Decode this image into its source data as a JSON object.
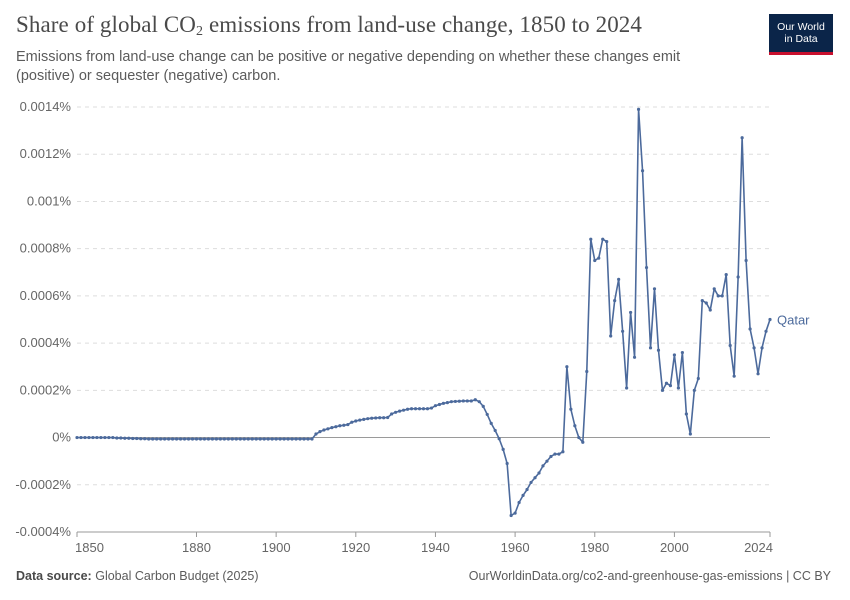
{
  "header": {
    "title_prefix": "Share of global CO",
    "title_sub": "2",
    "title_suffix": " emissions from land-use change, 1850 to 2024",
    "subtitle": "Emissions from land-use change can be positive or negative depending on whether these changes emit (positive) or sequester (negative) carbon."
  },
  "logo": {
    "line1": "Our World",
    "line2": "in Data",
    "bg": "#0b2549",
    "accent": "#c8102e"
  },
  "footer": {
    "source_label": "Data source:",
    "source_value": "Global Carbon Budget (2025)",
    "right_text": "OurWorldinData.org/co2-and-greenhouse-gas-emissions | CC BY"
  },
  "chart_data": {
    "type": "line",
    "title": "Share of global CO₂ emissions from land-use change, 1850 to 2024",
    "xlim": [
      1850,
      2024
    ],
    "ylim": [
      -0.0004,
      0.0014
    ],
    "x_ticks": [
      1850,
      1880,
      1900,
      1920,
      1940,
      1960,
      1980,
      2000,
      2024
    ],
    "y_ticks": [
      {
        "value": -0.0004,
        "label": "-0.0004%"
      },
      {
        "value": -0.0002,
        "label": "-0.0002%"
      },
      {
        "value": 0,
        "label": "0%"
      },
      {
        "value": 0.0002,
        "label": "0.0002%"
      },
      {
        "value": 0.0004,
        "label": "0.0004%"
      },
      {
        "value": 0.0006,
        "label": "0.0006%"
      },
      {
        "value": 0.0008,
        "label": "0.0008%"
      },
      {
        "value": 0.001,
        "label": "0.001%"
      },
      {
        "value": 0.0012,
        "label": "0.0012%"
      },
      {
        "value": 0.0014,
        "label": "0.0014%"
      }
    ],
    "grid": true,
    "color": "#4c6a9c",
    "series": [
      {
        "name": "Qatar",
        "x": [
          1850,
          1851,
          1852,
          1853,
          1854,
          1855,
          1856,
          1857,
          1858,
          1859,
          1860,
          1861,
          1862,
          1863,
          1864,
          1865,
          1866,
          1867,
          1868,
          1869,
          1870,
          1871,
          1872,
          1873,
          1874,
          1875,
          1876,
          1877,
          1878,
          1879,
          1880,
          1881,
          1882,
          1883,
          1884,
          1885,
          1886,
          1887,
          1888,
          1889,
          1890,
          1891,
          1892,
          1893,
          1894,
          1895,
          1896,
          1897,
          1898,
          1899,
          1900,
          1901,
          1902,
          1903,
          1904,
          1905,
          1906,
          1907,
          1908,
          1909,
          1910,
          1911,
          1912,
          1913,
          1914,
          1915,
          1916,
          1917,
          1918,
          1919,
          1920,
          1921,
          1922,
          1923,
          1924,
          1925,
          1926,
          1927,
          1928,
          1929,
          1930,
          1931,
          1932,
          1933,
          1934,
          1935,
          1936,
          1937,
          1938,
          1939,
          1940,
          1941,
          1942,
          1943,
          1944,
          1945,
          1946,
          1947,
          1948,
          1949,
          1950,
          1951,
          1952,
          1953,
          1954,
          1955,
          1956,
          1957,
          1958,
          1959,
          1960,
          1961,
          1962,
          1963,
          1964,
          1965,
          1966,
          1967,
          1968,
          1969,
          1970,
          1971,
          1972,
          1973,
          1974,
          1975,
          1976,
          1977,
          1978,
          1979,
          1980,
          1981,
          1982,
          1983,
          1984,
          1985,
          1986,
          1987,
          1988,
          1989,
          1990,
          1991,
          1992,
          1993,
          1994,
          1995,
          1996,
          1997,
          1998,
          1999,
          2000,
          2001,
          2002,
          2003,
          2004,
          2005,
          2006,
          2007,
          2008,
          2009,
          2010,
          2011,
          2012,
          2013,
          2014,
          2015,
          2016,
          2017,
          2018,
          2019,
          2020,
          2021,
          2022,
          2023,
          2024
        ],
        "y": [
          0,
          0,
          0,
          0,
          0,
          0,
          0,
          0,
          0,
          0,
          -2e-06,
          -2e-06,
          -3e-06,
          -3e-06,
          -4e-06,
          -4e-06,
          -5e-06,
          -5e-06,
          -6e-06,
          -6e-06,
          -6e-06,
          -6e-06,
          -6e-06,
          -6e-06,
          -6e-06,
          -6e-06,
          -6e-06,
          -6e-06,
          -6e-06,
          -6e-06,
          -6e-06,
          -6e-06,
          -6e-06,
          -6e-06,
          -6e-06,
          -6e-06,
          -6e-06,
          -6e-06,
          -6e-06,
          -6e-06,
          -6e-06,
          -6e-06,
          -6e-06,
          -6e-06,
          -6e-06,
          -6e-06,
          -6e-06,
          -6e-06,
          -6e-06,
          -6e-06,
          -6e-06,
          -6e-06,
          -6e-06,
          -6e-06,
          -6e-06,
          -6e-06,
          -6e-06,
          -6e-06,
          -6e-06,
          -6e-06,
          1.5e-05,
          2.5e-05,
          3.2e-05,
          3.7e-05,
          4.2e-05,
          4.6e-05,
          5e-05,
          5.2e-05,
          5.5e-05,
          6.5e-05,
          7e-05,
          7.4e-05,
          7.7e-05,
          8e-05,
          8.2e-05,
          8.3e-05,
          8.4e-05,
          8.4e-05,
          8.5e-05,
          0.0001,
          0.000107,
          0.000112,
          0.000116,
          0.00012,
          0.000122,
          0.000122,
          0.000122,
          0.000122,
          0.000122,
          0.000125,
          0.000135,
          0.00014,
          0.000145,
          0.000148,
          0.000152,
          0.000153,
          0.000154,
          0.000155,
          0.000155,
          0.000155,
          0.00016,
          0.000152,
          0.000132,
          9.8e-05,
          6e-05,
          3e-05,
          -5e-06,
          -5e-05,
          -0.00011,
          -0.00033,
          -0.00032,
          -0.000275,
          -0.000245,
          -0.00022,
          -0.00019,
          -0.00017,
          -0.00015,
          -0.00012,
          -0.0001,
          -8e-05,
          -7e-05,
          -7e-05,
          -6e-05,
          0.0003,
          0.00012,
          5e-05,
          0,
          -2e-05,
          0.00028,
          0.00084,
          0.00075,
          0.00076,
          0.00084,
          0.00083,
          0.00043,
          0.00058,
          0.00067,
          0.00045,
          0.00021,
          0.00053,
          0.00034,
          0.00139,
          0.00113,
          0.00072,
          0.00038,
          0.00063,
          0.00037,
          0.0002,
          0.00023,
          0.00022,
          0.00035,
          0.00021,
          0.00036,
          0.0001,
          1.5e-05,
          0.0002,
          0.00025,
          0.00058,
          0.00057,
          0.00054,
          0.00063,
          0.0006,
          0.0006,
          0.00069,
          0.00039,
          0.00026,
          0.00068,
          0.00127,
          0.00075,
          0.00046,
          0.00038,
          0.00027,
          0.00038,
          0.00045,
          0.0005
        ]
      }
    ]
  }
}
